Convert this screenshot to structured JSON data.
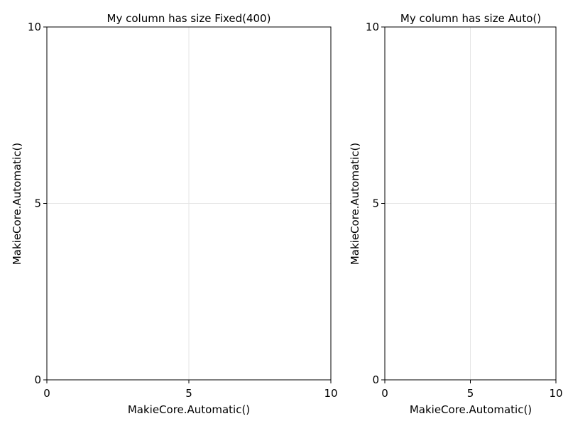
{
  "chart_data": [
    {
      "type": "scatter",
      "title": "My column has size Fixed(400)",
      "xlabel": "MakieCore.Automatic()",
      "ylabel": "MakieCore.Automatic()",
      "xlim": [
        0,
        10
      ],
      "ylim": [
        0,
        10
      ],
      "xticks": [
        0,
        5,
        10
      ],
      "yticks": [
        0,
        5,
        10
      ],
      "xtick_labels": [
        "0",
        "5",
        "10"
      ],
      "ytick_labels": [
        "0",
        "5",
        "10"
      ],
      "grid": true,
      "series": []
    },
    {
      "type": "scatter",
      "title": "My column has size Auto()",
      "xlabel": "MakieCore.Automatic()",
      "ylabel": "MakieCore.Automatic()",
      "xlim": [
        0,
        10
      ],
      "ylim": [
        0,
        10
      ],
      "xticks": [
        0,
        5,
        10
      ],
      "yticks": [
        0,
        5,
        10
      ],
      "xtick_labels": [
        "0",
        "5",
        "10"
      ],
      "ytick_labels": [
        "0",
        "5",
        "10"
      ],
      "grid": true,
      "series": []
    }
  ],
  "colors": {
    "grid": "#e6e6e6",
    "spine": "#000000",
    "text": "#000000",
    "background": "#ffffff"
  }
}
